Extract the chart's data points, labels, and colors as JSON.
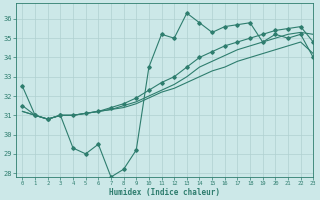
{
  "title": "",
  "xlabel": "Humidex (Indice chaleur)",
  "ylabel": "",
  "bg_color": "#cce8e8",
  "grid_color": "#b0d0d0",
  "line_color": "#2e7d6e",
  "xlim": [
    -0.5,
    23
  ],
  "ylim": [
    27.8,
    36.8
  ],
  "yticks": [
    28,
    29,
    30,
    31,
    32,
    33,
    34,
    35,
    36
  ],
  "xticks": [
    0,
    1,
    2,
    3,
    4,
    5,
    6,
    7,
    8,
    9,
    10,
    11,
    12,
    13,
    14,
    15,
    16,
    17,
    18,
    19,
    20,
    21,
    22,
    23
  ],
  "line1_x": [
    0,
    1,
    2,
    3,
    4,
    5,
    6,
    7,
    8,
    9,
    10,
    11,
    12,
    13,
    14,
    15,
    16,
    17,
    18,
    19,
    20,
    21,
    22,
    23
  ],
  "line1_y": [
    32.5,
    31.0,
    30.8,
    31.0,
    29.3,
    29.0,
    29.5,
    27.8,
    28.2,
    29.2,
    33.5,
    35.2,
    35.0,
    36.3,
    35.8,
    35.3,
    35.6,
    35.7,
    35.8,
    34.8,
    35.2,
    35.0,
    35.2,
    34.0
  ],
  "line2_x": [
    0,
    1,
    2,
    3,
    4,
    5,
    6,
    7,
    8,
    9,
    10,
    11,
    12,
    13,
    14,
    15,
    16,
    17,
    18,
    19,
    20,
    21,
    22,
    23
  ],
  "line2_y": [
    31.2,
    31.0,
    30.8,
    31.0,
    31.0,
    31.1,
    31.2,
    31.3,
    31.4,
    31.6,
    31.9,
    32.2,
    32.4,
    32.7,
    33.0,
    33.3,
    33.5,
    33.8,
    34.0,
    34.2,
    34.4,
    34.6,
    34.8,
    34.2
  ],
  "line3_x": [
    0,
    1,
    2,
    3,
    4,
    5,
    6,
    7,
    8,
    9,
    10,
    11,
    12,
    13,
    14,
    15,
    16,
    17,
    18,
    19,
    20,
    21,
    22,
    23
  ],
  "line3_y": [
    31.2,
    31.0,
    30.8,
    31.0,
    31.0,
    31.1,
    31.2,
    31.3,
    31.5,
    31.7,
    32.0,
    32.3,
    32.6,
    33.0,
    33.5,
    33.8,
    34.1,
    34.4,
    34.6,
    34.8,
    35.0,
    35.2,
    35.3,
    35.2
  ],
  "line4_x": [
    0,
    1,
    2,
    3,
    4,
    5,
    6,
    7,
    8,
    9,
    10,
    11,
    12,
    13,
    14,
    15,
    16,
    17,
    18,
    19,
    20,
    21,
    22,
    23
  ],
  "line4_y": [
    31.5,
    31.0,
    30.8,
    31.0,
    31.0,
    31.1,
    31.2,
    31.4,
    31.6,
    31.9,
    32.3,
    32.7,
    33.0,
    33.5,
    34.0,
    34.3,
    34.6,
    34.8,
    35.0,
    35.2,
    35.4,
    35.5,
    35.6,
    34.8
  ]
}
